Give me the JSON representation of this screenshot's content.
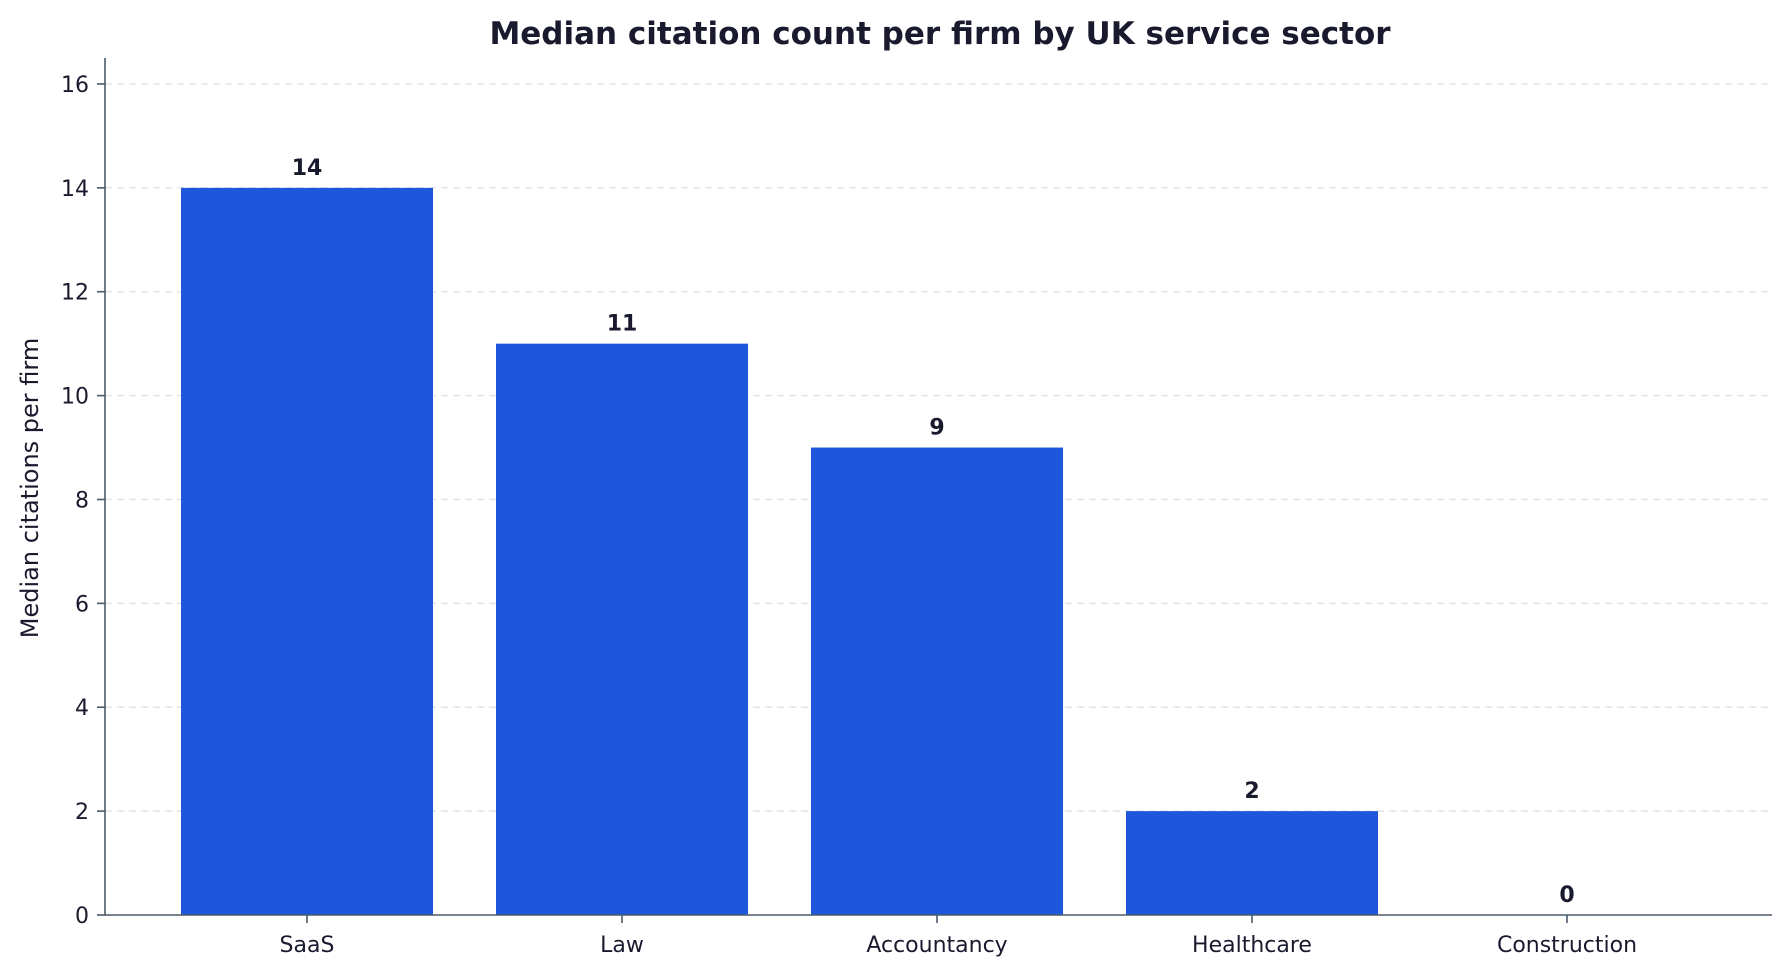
{
  "chart_data": {
    "type": "bar",
    "title": "Median citation count per firm by UK service sector",
    "xlabel": "",
    "ylabel": "Median citations per firm",
    "categories": [
      "SaaS",
      "Law",
      "Accountancy",
      "Healthcare",
      "Construction"
    ],
    "values": [
      14,
      11,
      9,
      2,
      0
    ],
    "value_labels": [
      "14",
      "11",
      "9",
      "2",
      "0"
    ],
    "ylim": [
      0,
      16.5
    ],
    "yticks": [
      0,
      2,
      4,
      6,
      8,
      10,
      12,
      14,
      16
    ],
    "ytick_labels": [
      "0",
      "2",
      "4",
      "6",
      "8",
      "10",
      "12",
      "14",
      "16"
    ],
    "grid": "horizontal dashed",
    "legend": "none",
    "colors": {
      "bar": "#1c57dc",
      "text": "#1a1a2e",
      "axis": "#4a5a6a",
      "grid": "#e2e4e8"
    }
  }
}
